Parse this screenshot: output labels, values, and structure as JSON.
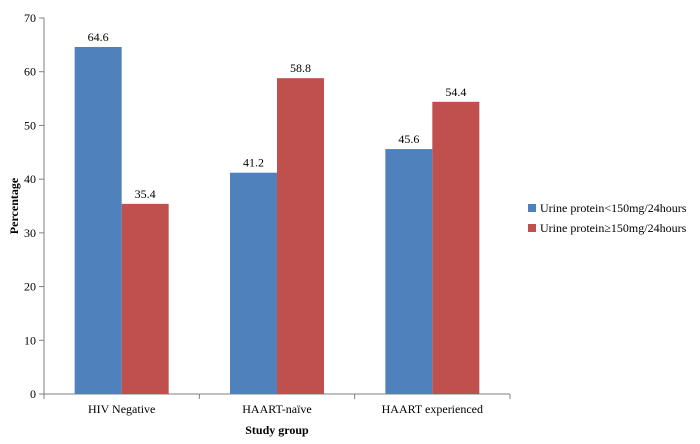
{
  "chart_data": {
    "type": "bar",
    "title": "",
    "xlabel": "Study group",
    "ylabel": "Percentage",
    "categories": [
      "HIV Negative",
      "HAART-naïve",
      "HAART experienced"
    ],
    "series": [
      {
        "name": "Urine protein<150mg/24hours",
        "color": "#4F81BD",
        "values": [
          64.6,
          41.2,
          45.6
        ],
        "labels": [
          "64.6",
          "41.2",
          "45.6"
        ]
      },
      {
        "name": "Urine protein≥150mg/24hours",
        "color": "#C0504D",
        "values": [
          35.4,
          58.8,
          54.4
        ],
        "labels": [
          "35.4",
          "58.8",
          "54.4"
        ]
      }
    ],
    "ylim": [
      0,
      70
    ],
    "yticks": [
      "0",
      "10",
      "20",
      "30",
      "40",
      "50",
      "60",
      "70"
    ],
    "grid": false,
    "legend_position": "right"
  }
}
